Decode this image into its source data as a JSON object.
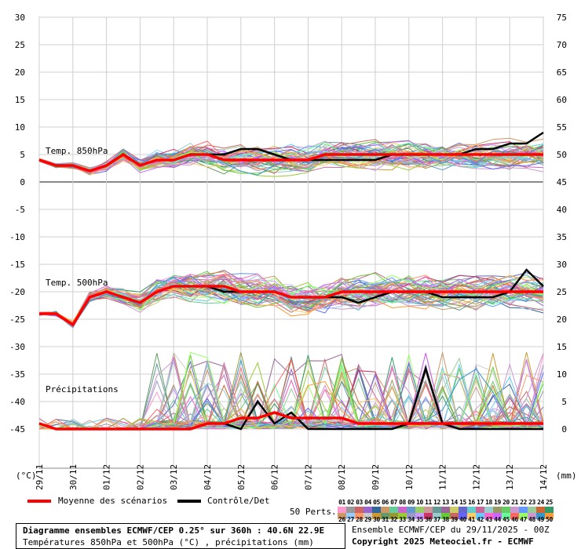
{
  "chart_data": {
    "type": "line",
    "annotations": [
      "Temp. 850hPa",
      "Temp. 500hPa",
      "Précipitations"
    ],
    "left_axis": {
      "unit": "(°C)",
      "ylim": [
        -45,
        30
      ],
      "ticks": [
        30,
        25,
        20,
        15,
        10,
        5,
        0,
        -5,
        -10,
        -15,
        -20,
        -25,
        -30,
        -35,
        -40,
        -45
      ]
    },
    "right_axis": {
      "unit": "(mm)",
      "ticks": [
        75,
        70,
        65,
        60,
        55,
        50,
        45,
        40,
        35,
        30,
        25,
        20,
        15,
        10,
        5,
        0
      ]
    },
    "x_tick_labels": [
      "29/11",
      "30/11",
      "01/12",
      "02/12",
      "03/12",
      "04/12",
      "05/12",
      "06/12",
      "07/12",
      "08/12",
      "09/12",
      "10/12",
      "11/12",
      "12/12",
      "13/12",
      "14/12"
    ],
    "grid": true,
    "series": [
      {
        "name": "Moyenne des scénarios",
        "color": "#ff0000",
        "t850": [
          4,
          3,
          3,
          2,
          3,
          5,
          3,
          4,
          4,
          5,
          5,
          4,
          4,
          4,
          4,
          4,
          4,
          5,
          5,
          5,
          5,
          5,
          5,
          5,
          5,
          5,
          5,
          5,
          5,
          5,
          5
        ],
        "t500": [
          -24,
          -24,
          -26,
          -21,
          -20,
          -21,
          -22,
          -20,
          -19,
          -19,
          -19,
          -19,
          -20,
          -20,
          -20,
          -21,
          -21,
          -21,
          -20,
          -20,
          -20,
          -20,
          -20,
          -20,
          -20,
          -20,
          -20,
          -20,
          -20,
          -20,
          -20
        ],
        "precip_mm": [
          1,
          0,
          0,
          0,
          0,
          0,
          0,
          0,
          0,
          0,
          1,
          1,
          2,
          2,
          3,
          2,
          2,
          2,
          2,
          1,
          1,
          1,
          1,
          1,
          1,
          1,
          1,
          1,
          1,
          1,
          1
        ]
      },
      {
        "name": "Contrôle/Det",
        "color": "#000000",
        "t850": [
          4,
          3,
          3,
          2,
          3,
          5,
          3,
          4,
          4,
          5,
          5,
          5,
          6,
          6,
          5,
          4,
          4,
          4,
          4,
          4,
          4,
          5,
          5,
          5,
          5,
          5,
          6,
          6,
          7,
          7,
          9
        ],
        "t500": [
          -24,
          -24,
          -26,
          -21,
          -20,
          -21,
          -22,
          -20,
          -19,
          -19,
          -19,
          -20,
          -20,
          -20,
          -20,
          -21,
          -21,
          -21,
          -21,
          -22,
          -21,
          -20,
          -20,
          -20,
          -21,
          -21,
          -21,
          -21,
          -20,
          -16,
          -19
        ],
        "precip_mm": [
          1,
          0,
          0,
          0,
          0,
          0,
          0,
          0,
          0,
          0,
          1,
          1,
          0,
          5,
          1,
          3,
          0,
          0,
          0,
          0,
          0,
          0,
          1,
          11,
          1,
          0,
          0,
          0,
          0,
          0,
          0
        ]
      }
    ],
    "ensemble_members": 50
  },
  "legend": {
    "mean_label": "Moyenne des scénarios",
    "control_label": "Contrôle/Det",
    "perts_label": "50 Perts.",
    "member_numbers_row1": [
      "01",
      "02",
      "03",
      "04",
      "05",
      "06",
      "07",
      "08",
      "09",
      "10",
      "11",
      "12",
      "13",
      "14",
      "15",
      "16",
      "17",
      "18",
      "19",
      "20",
      "21",
      "22",
      "23",
      "24",
      "25"
    ],
    "member_numbers_row2": [
      "26",
      "27",
      "28",
      "29",
      "30",
      "31",
      "32",
      "33",
      "34",
      "35",
      "36",
      "37",
      "38",
      "39",
      "40",
      "41",
      "42",
      "43",
      "44",
      "45",
      "46",
      "47",
      "48",
      "49",
      "50"
    ],
    "member_colors_row1": [
      "#ff99cc",
      "#999999",
      "#cc6666",
      "#9966cc",
      "#336699",
      "#cc9966",
      "#66cc99",
      "#cc66cc",
      "#6699cc",
      "#99cc66",
      "#cc9999",
      "#669999",
      "#996699",
      "#cccc66",
      "#6666cc",
      "#66cccc",
      "#cc6699",
      "#99cccc",
      "#999966",
      "#66cc66",
      "#cc99cc",
      "#6699ff",
      "#99cc99",
      "#cc6633",
      "#339966"
    ],
    "member_colors_row2": [
      "#cc9966",
      "#99ccff",
      "#ff9966",
      "#cccccc",
      "#cc9933",
      "#669966",
      "#999933",
      "#99cc33",
      "#9999cc",
      "#cc99ff",
      "#cc3366",
      "#99cccc",
      "#66cc33",
      "#cc6666",
      "#6666ff",
      "#ffcc66",
      "#66ccff",
      "#ff66cc",
      "#cc66ff",
      "#66ff99",
      "#ff6666",
      "#99ff66",
      "#cc99cc",
      "#3399cc",
      "#ff9933"
    ]
  },
  "footer": {
    "title": "Diagramme ensembles ECMWF/CEP 0.25° sur 360h : 40.6N 22.9E",
    "subtitle": "Températures 850hPa et 500hPa (°C) , précipitations (mm)",
    "run": "Ensemble ECMWF/CEP du 29/11/2025 - 00Z",
    "copyright": "Copyright 2025 Meteociel.fr - ECMWF"
  }
}
